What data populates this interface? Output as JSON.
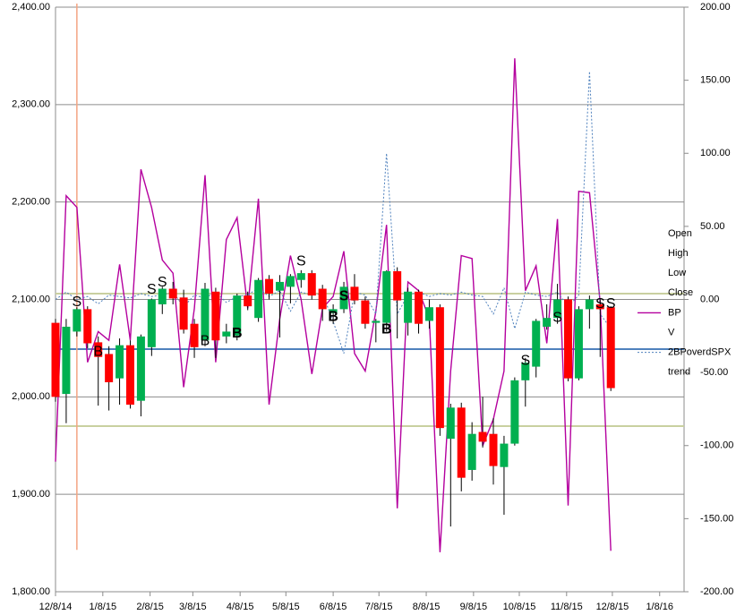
{
  "chart_data": {
    "type": "candlestick",
    "x": [
      "12/8/14",
      "12/15/14",
      "12/22/14",
      "12/29/14",
      "1/5/15",
      "1/12/15",
      "1/19/15",
      "1/26/15",
      "2/2/15",
      "2/9/15",
      "2/16/15",
      "2/23/15",
      "3/2/15",
      "3/9/15",
      "3/16/15",
      "3/23/15",
      "3/30/15",
      "4/6/15",
      "4/13/15",
      "4/20/15",
      "4/27/15",
      "5/4/15",
      "5/11/15",
      "5/18/15",
      "5/25/15",
      "6/1/15",
      "6/8/15",
      "6/15/15",
      "6/22/15",
      "6/29/15",
      "7/6/15",
      "7/13/15",
      "7/20/15",
      "7/27/15",
      "8/3/15",
      "8/10/15",
      "8/17/15",
      "8/24/15",
      "8/31/15",
      "9/7/15",
      "9/14/15",
      "9/21/15",
      "9/28/15",
      "10/5/15",
      "10/12/15",
      "10/19/15",
      "10/26/15",
      "11/2/15",
      "11/9/15",
      "11/16/15",
      "11/23/15",
      "11/30/15",
      "12/7/15"
    ],
    "open": [
      2076,
      2003,
      2067,
      2090,
      2056,
      2044,
      2019,
      2053,
      1996,
      2051,
      2095,
      2111,
      2102,
      2075,
      2058,
      2108,
      2062,
      2063,
      2104,
      2081,
      2121,
      2109,
      2113,
      2120,
      2127,
      2111,
      2086,
      2090,
      2113,
      2099,
      2076,
      2076,
      2129,
      2076,
      2108,
      2078,
      2092,
      1957,
      1989,
      1925,
      1964,
      1962,
      1928,
      1952,
      2017,
      2031,
      2072,
      2081,
      2100,
      2019,
      2090,
      2095,
      2092
    ],
    "high": [
      2080,
      2080,
      2092,
      2093,
      2062,
      2052,
      2060,
      2058,
      2064,
      2101,
      2113,
      2118,
      2110,
      2080,
      2117,
      2112,
      2075,
      2106,
      2108,
      2122,
      2125,
      2125,
      2126,
      2130,
      2130,
      2115,
      2095,
      2118,
      2126,
      2103,
      2080,
      2130,
      2133,
      2112,
      2110,
      2100,
      2095,
      1993,
      1994,
      1974,
      2000,
      1978,
      1960,
      2020,
      2040,
      2080,
      2095,
      2116,
      2103,
      2093,
      2104,
      2100,
      2093
    ],
    "low": [
      1995,
      1973,
      2062,
      2050,
      1991,
      1986,
      1992,
      1988,
      1980,
      2042,
      2085,
      2095,
      2065,
      2040,
      2052,
      2040,
      2055,
      2058,
      2089,
      2077,
      2100,
      2061,
      2096,
      2112,
      2100,
      2078,
      2075,
      2086,
      2095,
      2070,
      2056,
      2067,
      2060,
      2063,
      2065,
      2070,
      1960,
      1867,
      1903,
      1914,
      1948,
      1910,
      1879,
      1950,
      1990,
      2020,
      2069,
      2075,
      2016,
      2017,
      2070,
      2041,
      2006
    ],
    "close": [
      2000,
      2072,
      2090,
      2055,
      2041,
      2015,
      2053,
      1992,
      2062,
      2100,
      2111,
      2101,
      2069,
      2051,
      2111,
      2058,
      2067,
      2104,
      2093,
      2120,
      2106,
      2118,
      2124,
      2127,
      2104,
      2090,
      2090,
      2113,
      2099,
      2075,
      2078,
      2129,
      2099,
      2108,
      2075,
      2092,
      1968,
      1989,
      1917,
      1962,
      1954,
      1929,
      1952,
      2017,
      2035,
      2078,
      2081,
      2100,
      2019,
      2090,
      2100,
      2090,
      2009
    ],
    "up_color": "#00b050",
    "down_color": "#ff0000",
    "series": [
      {
        "name": "BP",
        "color": "#b4009e",
        "axis": "y2",
        "dashed": false,
        "values": [
          -111,
          71,
          63,
          -43,
          -22,
          -28,
          24,
          -28,
          89,
          63,
          27,
          18,
          -60,
          -6,
          85,
          -43,
          41,
          56,
          -6,
          69,
          -72,
          -13,
          30,
          0,
          -51,
          -6,
          2,
          33,
          -37,
          -49,
          -8,
          51,
          -143,
          12,
          6,
          -13,
          -173,
          -49,
          30,
          28,
          -100,
          -82,
          -49,
          165,
          6,
          23,
          -30,
          55,
          -141,
          74,
          73,
          -2,
          -172
        ]
      },
      {
        "name": "2BPoverdSPX",
        "color": "#4f81bd",
        "axis": "y2",
        "dashed": true,
        "values": [
          0,
          5,
          0,
          2,
          -3,
          3,
          2,
          1,
          4,
          2,
          3,
          5,
          -5,
          3,
          1,
          5,
          -2,
          2,
          3,
          8,
          2,
          6,
          -8,
          5,
          3,
          4,
          -15,
          -37,
          5,
          3,
          -10,
          100,
          -10,
          3,
          5,
          2,
          4,
          3,
          5,
          3,
          2,
          -10,
          8,
          -20,
          5,
          3,
          2,
          5,
          -5,
          3,
          156,
          -10,
          -20
        ]
      }
    ],
    "legend": [
      "Open",
      "High",
      "Low",
      "Close",
      "BP",
      "V",
      "2BPoverdSPX",
      "trend"
    ],
    "hlines": [
      {
        "value": 2106,
        "color": "#c9d0a0"
      },
      {
        "value": 1970,
        "color": "#c9d0a0"
      },
      {
        "value": 2049,
        "color": "#4f81bd"
      }
    ],
    "vlines": [
      {
        "x": "12/22/14",
        "color": "#f4a582"
      }
    ],
    "annotations": [
      {
        "text": "S",
        "x": "12/22/14",
        "y": 2097,
        "color": "#000000"
      },
      {
        "text": "B",
        "x": "1/5/15",
        "y": 2046,
        "color": "#000000"
      },
      {
        "text": "S",
        "x": "2/9/15",
        "y": 2110,
        "color": "#000000"
      },
      {
        "text": "S",
        "x": "2/16/15",
        "y": 2117,
        "color": "#000000"
      },
      {
        "text": "B",
        "x": "3/16/15",
        "y": 2057,
        "color": "#000000"
      },
      {
        "text": "B",
        "x": "4/6/15",
        "y": 2065,
        "color": "#00b050"
      },
      {
        "text": "S",
        "x": "5/18/15",
        "y": 2139,
        "color": "#000000"
      },
      {
        "text": "B",
        "x": "6/8/15",
        "y": 2082,
        "color": "#00b050"
      },
      {
        "text": "S",
        "x": "6/15/15",
        "y": 2103,
        "color": "#ff0000"
      },
      {
        "text": "B",
        "x": "7/13/15",
        "y": 2069,
        "color": "#00b050"
      },
      {
        "text": "S",
        "x": "10/12/15",
        "y": 2037,
        "color": "#000000"
      },
      {
        "text": "S",
        "x": "11/2/15",
        "y": 2081,
        "color": "#000000"
      },
      {
        "text": "S",
        "x": "11/30/15",
        "y": 2095,
        "color": "#000000"
      },
      {
        "text": "S",
        "x": "12/7/15",
        "y": 2095,
        "color": "#000000"
      }
    ],
    "xlim": [
      "12/8/14",
      "1/24/16"
    ],
    "xticks": [
      "12/8/14",
      "1/8/15",
      "2/8/15",
      "3/8/15",
      "4/8/15",
      "5/8/15",
      "6/8/15",
      "7/8/15",
      "8/8/15",
      "9/8/15",
      "10/8/15",
      "11/8/15",
      "12/8/15",
      "1/8/16"
    ],
    "ylim": [
      1800,
      2400
    ],
    "yticks": [
      {
        "value": 1800,
        "label": "1,800.00"
      },
      {
        "value": 1900,
        "label": "1,900.00"
      },
      {
        "value": 2000,
        "label": "2,000.00"
      },
      {
        "value": 2100,
        "label": "2,100.00"
      },
      {
        "value": 2200,
        "label": "2,200.00"
      },
      {
        "value": 2300,
        "label": "2,300.00"
      },
      {
        "value": 2400,
        "label": "2,400.00"
      }
    ],
    "y2lim": [
      -200,
      200
    ],
    "y2ticks": [
      {
        "value": -200,
        "label": "-200.00"
      },
      {
        "value": -150,
        "label": "-150.00"
      },
      {
        "value": -100,
        "label": "-100.00"
      },
      {
        "value": -50,
        "label": "-50.00"
      },
      {
        "value": 0,
        "label": "0.00"
      },
      {
        "value": 50,
        "label": "50.00"
      },
      {
        "value": 100,
        "label": "100.00"
      },
      {
        "value": 150,
        "label": "150.00"
      },
      {
        "value": 200,
        "label": "200.00"
      }
    ],
    "grid": true
  }
}
